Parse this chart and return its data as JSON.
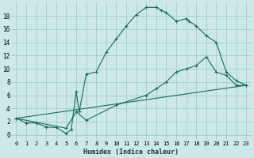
{
  "xlabel": "Humidex (Indice chaleur)",
  "background_color": "#cce8e8",
  "grid_color": "#aacece",
  "line_color": "#1a6b5a",
  "xlim": [
    -0.5,
    23.5
  ],
  "ylim": [
    -0.8,
    20.0
  ],
  "xtick_labels": [
    "0",
    "1",
    "2",
    "3",
    "4",
    "5",
    "6",
    "7",
    "8",
    "9",
    "10",
    "11",
    "12",
    "13",
    "14",
    "15",
    "16",
    "17",
    "18",
    "19",
    "20",
    "21",
    "22",
    "23"
  ],
  "ytick_values": [
    0,
    2,
    4,
    6,
    8,
    10,
    12,
    14,
    16,
    18
  ],
  "line1_x": [
    0,
    1,
    2,
    3,
    4,
    5,
    5.5,
    6,
    6.3,
    7,
    8,
    9,
    10,
    11,
    12,
    13,
    14,
    14.5,
    15,
    16,
    17,
    17.3,
    18,
    19,
    20,
    21,
    22,
    23
  ],
  "line1_y": [
    2.5,
    1.8,
    1.8,
    1.2,
    1.1,
    0.2,
    0.8,
    6.5,
    3.5,
    9.2,
    9.5,
    12.5,
    14.5,
    16.5,
    18.2,
    19.3,
    19.3,
    18.9,
    18.5,
    17.2,
    17.6,
    17.2,
    16.5,
    15.0,
    14.0,
    9.5,
    8.2,
    7.5
  ],
  "line2_x": [
    0,
    5,
    6,
    7,
    10,
    13,
    14,
    15,
    16,
    17,
    18,
    19,
    20,
    21,
    22,
    23
  ],
  "line2_y": [
    2.5,
    1.0,
    3.5,
    2.2,
    4.5,
    6.0,
    7.0,
    8.0,
    9.5,
    10.0,
    10.5,
    11.8,
    9.5,
    9.0,
    7.5,
    7.5
  ],
  "line3_x": [
    0,
    23
  ],
  "line3_y": [
    2.5,
    7.5
  ]
}
